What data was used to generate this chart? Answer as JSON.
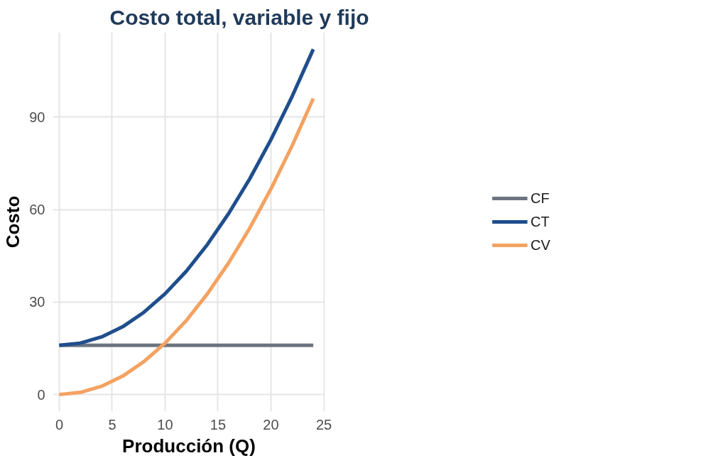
{
  "chart_data": {
    "type": "line",
    "title": "Costo total, variable y fijo",
    "xlabel": "Producción (Q)",
    "ylabel": "Costo",
    "x": [
      0,
      2,
      4,
      6,
      8,
      10,
      12,
      14,
      16,
      18,
      20,
      22,
      24
    ],
    "series": [
      {
        "name": "CF",
        "color": "#6c7480",
        "values": [
          16,
          16,
          16,
          16,
          16,
          16,
          16,
          16,
          16,
          16,
          16,
          16,
          16
        ]
      },
      {
        "name": "CT",
        "color": "#1f4e8c",
        "values": [
          16,
          16.7,
          18.7,
          22,
          26.7,
          32.7,
          40,
          48.7,
          58.7,
          70,
          82.7,
          96.7,
          112
        ]
      },
      {
        "name": "CV",
        "color": "#f4a261",
        "values": [
          0,
          0.7,
          2.7,
          6,
          10.7,
          16.7,
          24,
          32.7,
          42.7,
          54,
          66.7,
          80.7,
          96
        ]
      }
    ],
    "xlim": [
      -0.6,
      25.1
    ],
    "ylim": [
      -5.5,
      117.5
    ],
    "xticks": [
      0,
      5,
      10,
      15,
      20,
      25
    ],
    "yticks": [
      0,
      30,
      60,
      90
    ],
    "grid": true,
    "legend": "right",
    "marker": "none",
    "line_style": "solid"
  }
}
